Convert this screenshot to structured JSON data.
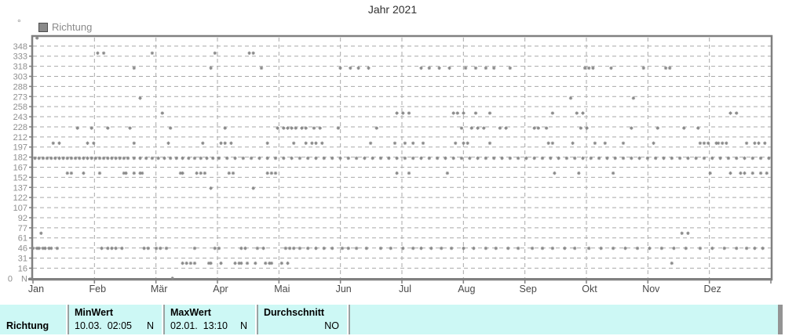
{
  "title": "Jahr 2021",
  "legend": {
    "label": "Richtung",
    "swatch_color": "#8a8a8a"
  },
  "y_axis": {
    "unit": "°",
    "zero_label": "0",
    "zero_compass": "N"
  },
  "chart_data": {
    "type": "scatter",
    "title": "Jahr 2021",
    "series_name": "Richtung",
    "x_unit": "day_of_year (0 = 1. Jan)",
    "y_unit": "Windrichtung in Grad",
    "ylim": [
      0,
      360
    ],
    "xlim": [
      0,
      365
    ],
    "grid": "dashed",
    "legend_position": "top-left",
    "marker": "asterisk",
    "marker_color": "#8a8a8a",
    "y_tick_labels": [
      "348",
      "333",
      "318",
      "303",
      "288",
      "273",
      "258",
      "243",
      "228",
      "212",
      "197",
      "182",
      "167",
      "152",
      "137",
      "122",
      "107",
      "92",
      "77",
      "61",
      "46",
      "31",
      "16"
    ],
    "y_zero_labels": [
      "0",
      "N"
    ],
    "x_month_labels": [
      "Jan",
      "Feb",
      "Mär",
      "Apr",
      "Mai",
      "Jun",
      "Jul",
      "Aug",
      "Sep",
      "Okt",
      "Nov",
      "Dez"
    ],
    "series": [
      {
        "dir_deg": 360,
        "days": [
          2
        ]
      },
      {
        "dir_deg": 337.5,
        "days": [
          32,
          35,
          59,
          90,
          107,
          109
        ]
      },
      {
        "dir_deg": 315,
        "days": [
          50,
          88,
          113,
          152,
          157,
          161,
          166,
          192,
          196,
          201,
          206,
          214,
          219,
          224,
          228,
          236,
          273,
          275,
          277,
          286,
          302,
          313,
          315
        ]
      },
      {
        "dir_deg": 270,
        "days": [
          53,
          266,
          297
        ]
      },
      {
        "dir_deg": 247.5,
        "days": [
          64,
          180,
          183,
          186,
          208,
          210,
          213,
          219,
          226,
          257,
          269,
          272,
          345,
          348
        ]
      },
      {
        "dir_deg": 225,
        "days": [
          22,
          29,
          37,
          48,
          68,
          95,
          121,
          124,
          126,
          128,
          130,
          133,
          135,
          139,
          142,
          151,
          170,
          212,
          217,
          220,
          223,
          231,
          234,
          248,
          250,
          254,
          271,
          274,
          296,
          309,
          322,
          329
        ]
      },
      {
        "dir_deg": 202.5,
        "days": [
          10,
          13,
          27,
          30,
          50,
          67,
          84,
          93,
          95,
          98,
          116,
          129,
          135,
          138,
          140,
          143,
          167,
          179,
          184,
          188,
          193,
          209,
          213,
          215,
          226,
          255,
          257,
          267,
          278,
          283,
          292,
          307,
          330,
          332,
          334,
          338,
          339,
          341,
          343,
          353,
          357,
          359,
          362
        ]
      },
      {
        "dir_deg": 180,
        "days": [
          1,
          3,
          5,
          7,
          9,
          11,
          13,
          15,
          17,
          19,
          21,
          23,
          25,
          27,
          29,
          31,
          33,
          35,
          37,
          39,
          41,
          43,
          45,
          47,
          50,
          53,
          56,
          59,
          62,
          65,
          68,
          71,
          74,
          77,
          80,
          83,
          86,
          89,
          92,
          96,
          100,
          104,
          108,
          112,
          116,
          120,
          124,
          128,
          132,
          136,
          140,
          144,
          148,
          152,
          156,
          160,
          164,
          168,
          172,
          176,
          180,
          184,
          188,
          192,
          196,
          200,
          204,
          208,
          212,
          216,
          220,
          224,
          228,
          232,
          236,
          240,
          244,
          248,
          252,
          256,
          260,
          264,
          268,
          272,
          276,
          280,
          284,
          288,
          292,
          296,
          300,
          304,
          308,
          312,
          316,
          320,
          324,
          328,
          332,
          336,
          340,
          344,
          348,
          352,
          356,
          360,
          364
        ]
      },
      {
        "dir_deg": 157.5,
        "days": [
          17,
          19,
          25,
          33,
          45,
          46,
          50,
          53,
          54,
          73,
          74,
          81,
          83,
          85,
          97,
          99,
          116,
          118,
          120,
          180,
          186,
          205,
          258,
          270,
          287,
          335,
          345,
          350,
          352,
          356,
          360,
          363
        ]
      },
      {
        "dir_deg": 135,
        "days": [
          88,
          109
        ]
      },
      {
        "dir_deg": 67.5,
        "days": [
          4,
          321,
          324
        ]
      },
      {
        "dir_deg": 45,
        "days": [
          0,
          2,
          3,
          5,
          6,
          8,
          9,
          12,
          34,
          37,
          39,
          41,
          44,
          55,
          57,
          61,
          63,
          66,
          80,
          90,
          92,
          103,
          105,
          111,
          114,
          125,
          127,
          129,
          132,
          136,
          140,
          144,
          148,
          153,
          156,
          160,
          165,
          172,
          177,
          183,
          188,
          192,
          197,
          202,
          207,
          213,
          218,
          224,
          229,
          235,
          240,
          247,
          252,
          257,
          263,
          268,
          275,
          281,
          287,
          293,
          299,
          305,
          311,
          317,
          323,
          330,
          336,
          342,
          348,
          353,
          357,
          361
        ]
      },
      {
        "dir_deg": 22.5,
        "days": [
          74,
          76,
          78,
          80,
          87,
          88,
          93,
          100,
          102,
          103,
          106,
          110,
          115,
          117,
          118,
          123,
          126,
          316
        ]
      },
      {
        "dir_deg": 0,
        "days": [
          69
        ]
      }
    ]
  },
  "table": {
    "row_label": "Richtung",
    "columns": [
      {
        "header": "MinWert",
        "value": "10.03.  02:05",
        "unit": "N"
      },
      {
        "header": "MaxWert",
        "value": "02.01.  13:10",
        "unit": "N"
      },
      {
        "header": "Durchschnitt",
        "value": "",
        "unit": "NO"
      }
    ]
  }
}
